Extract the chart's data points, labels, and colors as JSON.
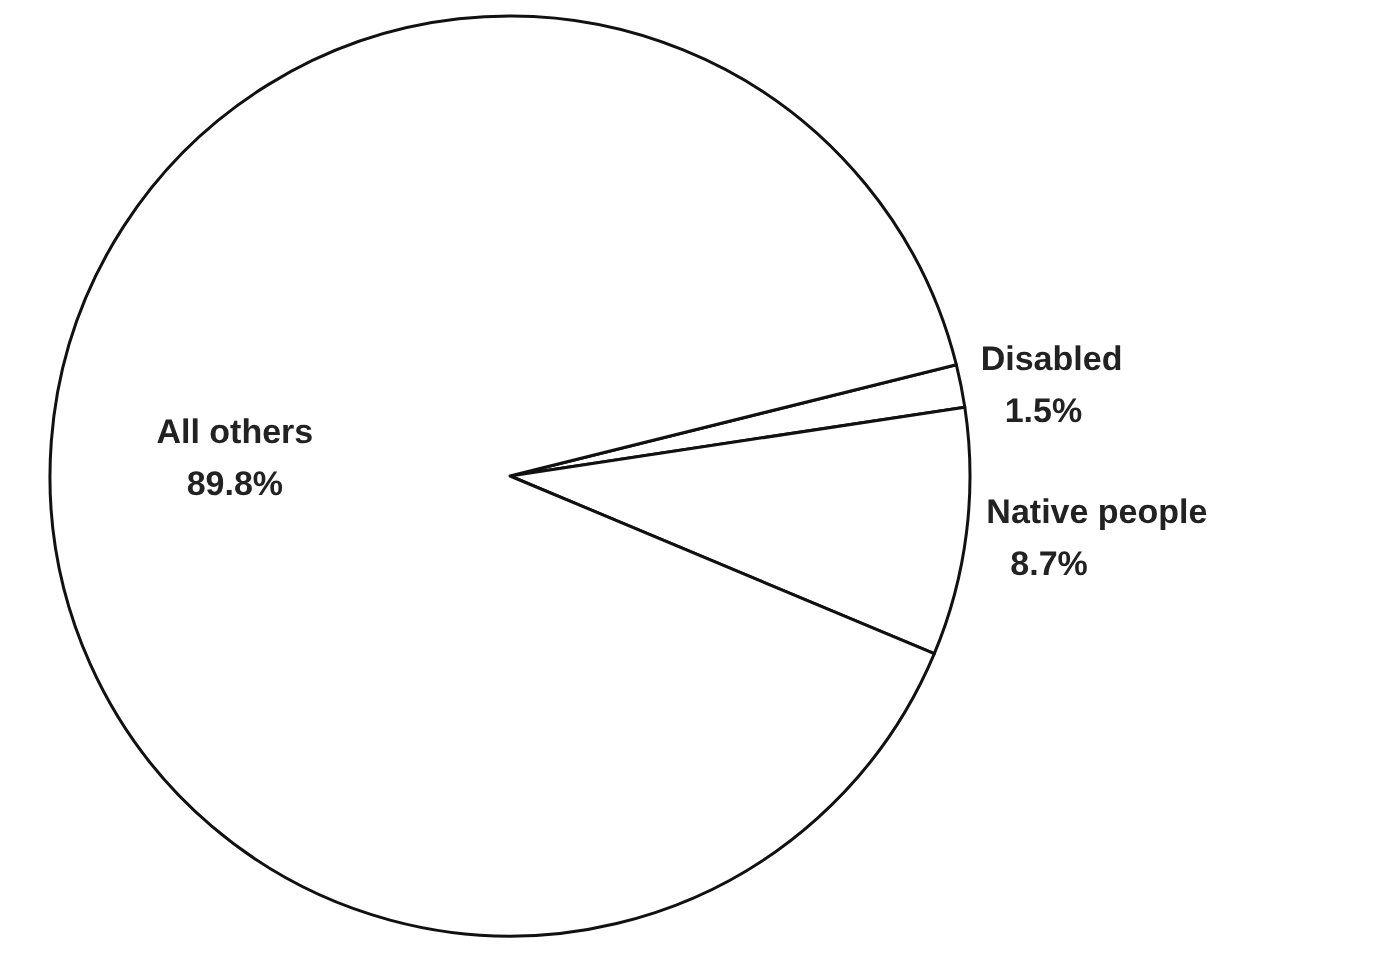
{
  "chart_data": {
    "type": "pie",
    "categories": [
      "Disabled",
      "Native people",
      "All others"
    ],
    "values": [
      1.5,
      8.7,
      89.8
    ],
    "value_labels": [
      "1.5%",
      "8.7%",
      "89.8%"
    ],
    "colors": [
      "#ffffff",
      "#ffffff",
      "#ffffff"
    ]
  }
}
